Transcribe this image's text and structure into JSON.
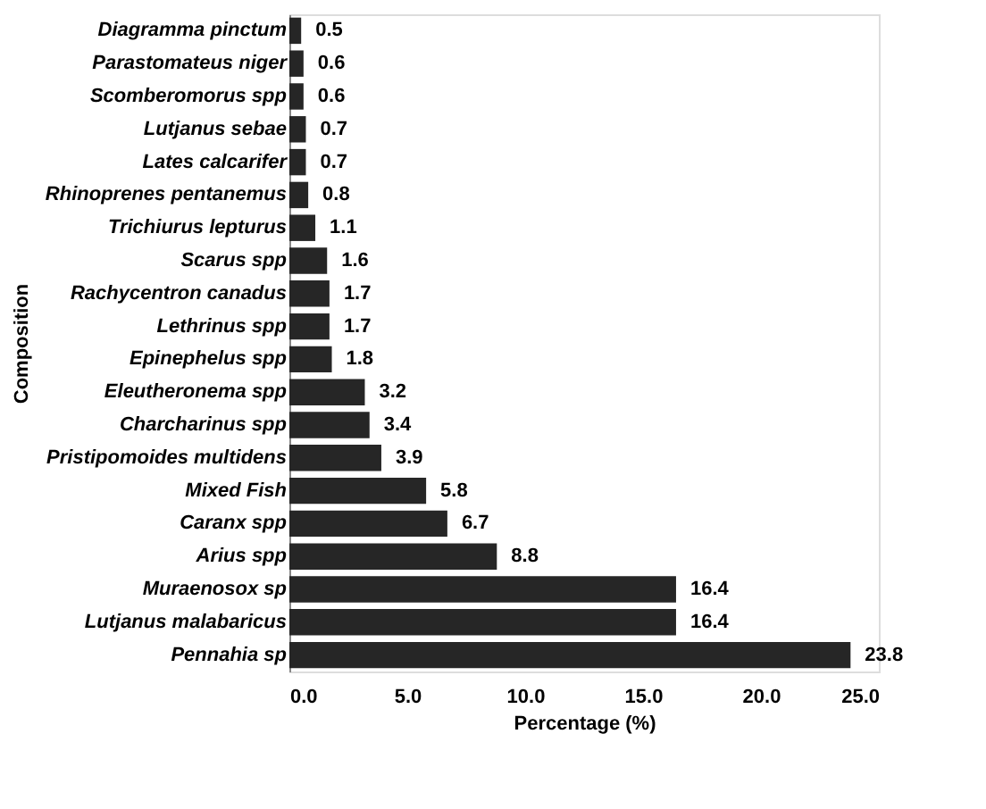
{
  "chart_data": {
    "type": "bar",
    "orientation": "horizontal",
    "xlabel": "Percentage (%)",
    "ylabel": "Composition",
    "categories": [
      "Diagramma pinctum",
      "Parastomateus niger",
      "Scomberomorus spp",
      "Lutjanus sebae",
      "Lates calcarifer",
      "Rhinoprenes pentanemus",
      "Trichiurus lepturus",
      "Scarus spp",
      "Rachycentron canadus",
      "Lethrinus spp",
      "Epinephelus spp",
      "Eleutheronema spp",
      "Charcharinus spp",
      "Pristipomoides multidens",
      "Mixed Fish",
      "Caranx spp",
      "Arius spp",
      "Muraenosox sp",
      "Lutjanus malabaricus",
      "Pennahia sp"
    ],
    "values": [
      0.5,
      0.6,
      0.6,
      0.7,
      0.7,
      0.8,
      1.1,
      1.6,
      1.7,
      1.7,
      1.8,
      3.2,
      3.4,
      3.9,
      5.8,
      6.7,
      8.8,
      16.4,
      16.4,
      23.8
    ],
    "color": "#262626",
    "data_labels": true,
    "xlim": [
      0,
      25
    ],
    "xticks": [
      {
        "value": 0,
        "label": "0.0"
      },
      {
        "value": 5,
        "label": "5.0"
      },
      {
        "value": 10,
        "label": "10.0"
      },
      {
        "value": 15,
        "label": "15.0"
      },
      {
        "value": 20,
        "label": "20.0"
      },
      {
        "value": 25,
        "label": "25.0"
      }
    ],
    "grid": false
  }
}
